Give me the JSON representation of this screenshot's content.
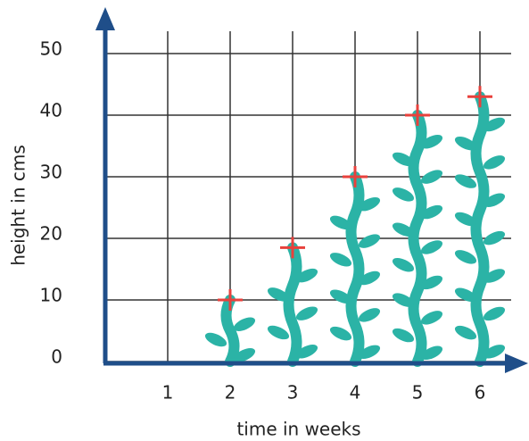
{
  "chart_data": {
    "type": "scatter",
    "x_label": "time in weeks",
    "y_label": "height in cms",
    "x": [
      2,
      3,
      4,
      5,
      6
    ],
    "values": [
      10,
      18.5,
      30,
      40,
      43
    ],
    "color": "#e8413c",
    "plant_color": "#2bb3a6",
    "xlim": [
      0,
      6.5
    ],
    "xticks": [
      1,
      2,
      3,
      4,
      5,
      6
    ],
    "ylim": [
      0,
      50
    ],
    "yticks": [
      0,
      10,
      20,
      30,
      40,
      50
    ],
    "grid": true
  }
}
